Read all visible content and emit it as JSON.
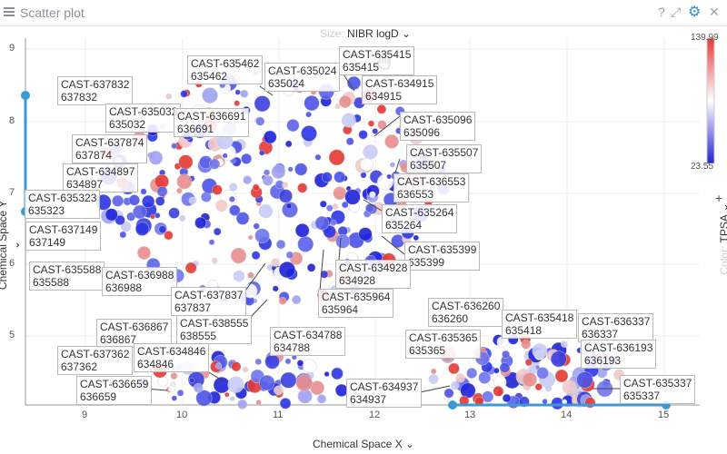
{
  "window": {
    "title": "Scatter plot"
  },
  "size_selector": {
    "label": "Size:",
    "value": "NIBR logD"
  },
  "axes": {
    "x_title": "Chemical Space X",
    "y_title": "Chemical Space Y",
    "x_ticks": [
      "9",
      "10",
      "11",
      "12",
      "13",
      "14",
      "15"
    ],
    "y_ticks": [
      "9",
      "8",
      "7",
      "6",
      "5"
    ]
  },
  "color_scale": {
    "label": "Color:",
    "column": "TPSA",
    "max": "139.99",
    "min": "23.55",
    "high_color": "#e53935",
    "mid_color": "#ffffff",
    "low_color": "#1e22d8"
  },
  "labels": [
    {
      "id": "CAST-635415",
      "sub": "635415"
    },
    {
      "id": "CAST-635462",
      "sub": "635462"
    },
    {
      "id": "CAST-635024",
      "sub": "635024"
    },
    {
      "id": "CAST-634915",
      "sub": "634915"
    },
    {
      "id": "CAST-637832",
      "sub": "637832"
    },
    {
      "id": "CAST-635032",
      "sub": "635032"
    },
    {
      "id": "CAST-636691",
      "sub": "636691"
    },
    {
      "id": "CAST-635096",
      "sub": "635096"
    },
    {
      "id": "CAST-637874",
      "sub": "637874"
    },
    {
      "id": "CAST-635507",
      "sub": "635507"
    },
    {
      "id": "CAST-634897",
      "sub": "634897"
    },
    {
      "id": "CAST-636553",
      "sub": "636553"
    },
    {
      "id": "CAST-635323",
      "sub": "635323"
    },
    {
      "id": "CAST-635264",
      "sub": "635264"
    },
    {
      "id": "CAST-637149",
      "sub": "637149"
    },
    {
      "id": "CAST-635399",
      "sub": "635399"
    },
    {
      "id": "CAST-634928",
      "sub": "634928"
    },
    {
      "id": "CAST-635588",
      "sub": "635588"
    },
    {
      "id": "CAST-636988",
      "sub": "636988"
    },
    {
      "id": "CAST-637837",
      "sub": "637837"
    },
    {
      "id": "CAST-635964",
      "sub": "635964"
    },
    {
      "id": "CAST-636260",
      "sub": "636260"
    },
    {
      "id": "CAST-635418",
      "sub": "635418"
    },
    {
      "id": "CAST-636337",
      "sub": "636337"
    },
    {
      "id": "CAST-636867",
      "sub": "636867"
    },
    {
      "id": "CAST-638555",
      "sub": "638555"
    },
    {
      "id": "CAST-634788",
      "sub": "634788"
    },
    {
      "id": "CAST-635365",
      "sub": "635365"
    },
    {
      "id": "CAST-636193",
      "sub": "636193"
    },
    {
      "id": "CAST-637362",
      "sub": "637362"
    },
    {
      "id": "CAST-634846",
      "sub": "634846"
    },
    {
      "id": "CAST-636659",
      "sub": "636659"
    },
    {
      "id": "CAST-634937",
      "sub": "634937"
    },
    {
      "id": "CAST-635337",
      "sub": "635337"
    }
  ]
}
